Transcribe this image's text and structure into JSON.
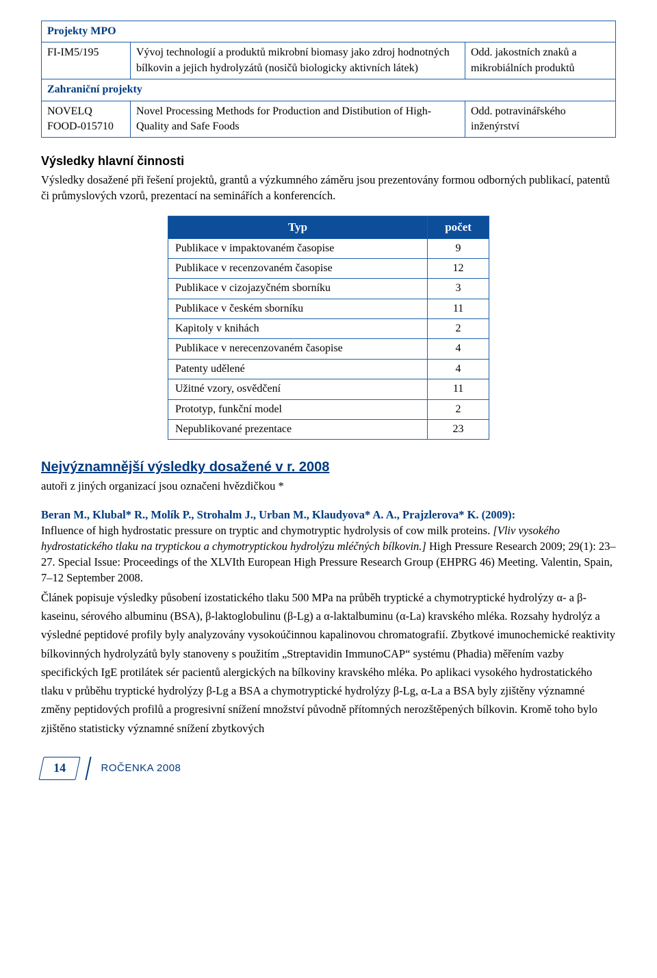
{
  "colors": {
    "primary": "#003b80",
    "border": "#1a5fa8",
    "th_bg": "#0d4e9a",
    "th_text": "#ffffff",
    "bg": "#ffffff",
    "text": "#000000"
  },
  "projects_table": {
    "section1_title": "Projekty MPO",
    "row1": {
      "code": "FI-IM5/195",
      "desc": "Vývoj technologií a produktů mikrobní biomasy jako zdroj hodnotných bílkovin a jejich hydrolyzátů (nosičů biologicky aktivních látek)",
      "dept": "Odd. jakostních znaků a mikrobiálních produktů"
    },
    "section2_title": "Zahraniční projekty",
    "row2": {
      "code_line1": "NOVELQ",
      "code_line2": "FOOD-015710",
      "desc": "Novel Processing Methods for Production and Distibution of High-Quality and Safe Foods",
      "dept": "Odd. potravinářského inženýrství"
    }
  },
  "results_heading": "Výsledky hlavní činnosti",
  "results_para": "Výsledky dosažené při řešení projektů, grantů a výzkumného záměru jsou prezentovány formou odborných publikací, patentů či průmyslových vzorů, prezentací na seminářích a konferencích.",
  "stats_table": {
    "header_type": "Typ",
    "header_count": "počet",
    "rows": [
      {
        "label": "Publikace v impaktovaném časopise",
        "count": "9"
      },
      {
        "label": "Publikace v recenzovaném časopise",
        "count": "12"
      },
      {
        "label": "Publikace v cizojazyčném sborníku",
        "count": "3"
      },
      {
        "label": "Publikace v českém sborníku",
        "count": "11"
      },
      {
        "label": "Kapitoly v knihách",
        "count": "2"
      },
      {
        "label": "Publikace v nerecenzovaném časopise",
        "count": "4"
      },
      {
        "label": "Patenty udělené",
        "count": "4"
      },
      {
        "label": "Užitné vzory, osvědčení",
        "count": "11"
      },
      {
        "label": "Prototyp, funkční model",
        "count": "2"
      },
      {
        "label": "Nepublikované prezentace",
        "count": "23"
      }
    ]
  },
  "highlights_heading": "Nejvýznamnější výsledky dosažené v r. 2008",
  "highlights_sub": "autoři z jiných organizací jsou označeni hvězdičkou *",
  "citation": {
    "authors": "Beran M., Klubal* R., Molík P., Strohalm J., Urban M., Klaudyova* A. A., Prajzlerova* K. (2009):",
    "title_en": "Influence of high hydrostatic pressure on tryptic and chymotryptic hydrolysis of cow milk proteins.",
    "title_cs": "[Vliv vysokého hydrostatického tlaku na tryptickou a chymotryptickou hydrolýzu mléčných bílkovin.]",
    "journal": "High Pressure Research 2009; 29(1): 23–27. Special Issue: Proceedings of the XLVIth European High Pressure Research Group (EHPRG 46) Meeting. Valentin, Spain, 7–12 September 2008.",
    "body": "Článek popisuje výsledky působení izostatického tlaku 500 MPa na průběh tryptické a chymotryptické hydrolýzy α- a β-kaseinu, sérového albuminu (BSA), β-laktoglobulinu (β-Lg) a α-laktalbuminu (α-La) kravského mléka. Rozsahy hydrolýz a výsledné peptidové profily byly analyzovány vysokoúčinnou kapalinovou chromatografií. Zbytkové imunochemické reaktivity bílkovinných hydrolyzátů byly stanoveny s použitím „Streptavidin ImmunoCAP“ systému (Phadia) měřením vazby specifických IgE protilátek sér pacientů alergických na bílkoviny kravského mléka. Po aplikaci vysokého hydrostatického tlaku v průběhu tryptické hydrolýzy β-Lg a BSA a chymotryptické hydrolýzy β-Lg, α-La a BSA byly zjištěny významné změny peptidových profilů a progresivní snížení množství původně přítomných nerozštěpených bílkovin. Kromě toho bylo zjištěno statisticky významné snížení zbytkových"
  },
  "footer": {
    "page": "14",
    "label": "ROČENKA 2008"
  }
}
